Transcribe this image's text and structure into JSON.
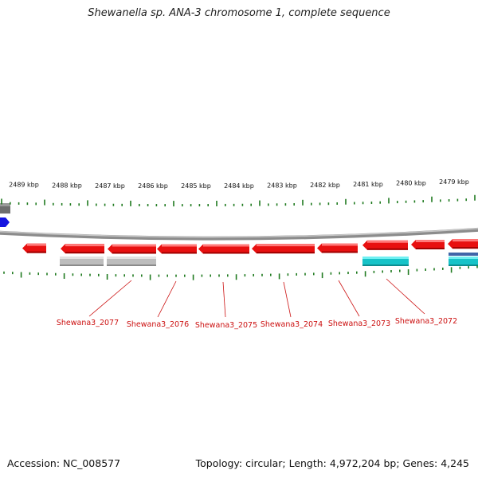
{
  "title": "Shewanella sp. ANA-3 chromosome 1, complete sequence",
  "accession": "Accession: NC_008577",
  "summary": "Topology: circular; Length: 4,972,204 bp; Genes: 4,245",
  "colors": {
    "gene": "#e81010",
    "tick": "#1f7a1f",
    "backbone": "#8c8c8c",
    "label": "#cc1111",
    "rna": "#bdbdbd",
    "misc": "#17c3c8",
    "blue": "#1414e0"
  },
  "scale_labels": [
    "2489 kbp",
    "2488 kbp",
    "2487 kbp",
    "2486 kbp",
    "2485 kbp",
    "2484 kbp",
    "2483 kbp",
    "2482 kbp",
    "2481 kbp",
    "2480 kbp",
    "2479 kbp"
  ],
  "gene_labels": [
    "Shewana3_2077",
    "Shewana3_2076",
    "Shewana3_2075",
    "Shewana3_2074",
    "Shewana3_2073",
    "Shewana3_2072"
  ]
}
